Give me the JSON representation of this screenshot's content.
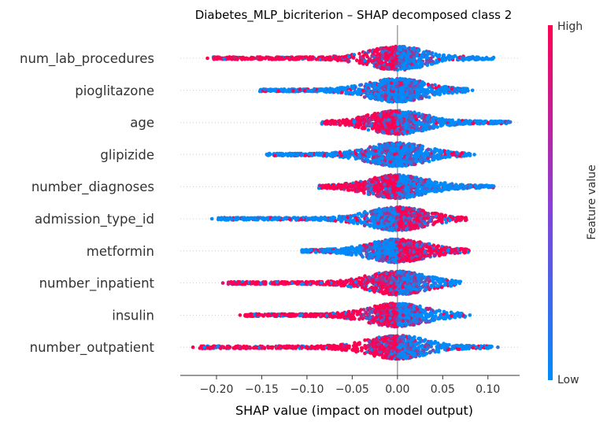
{
  "chart_data": {
    "type": "scatter",
    "subtype": "shap-beeswarm",
    "title": "Diabetes_MLP_bicriterion – SHAP decomposed class 2",
    "xlabel": "SHAP value (impact on model output)",
    "xlim": [
      -0.24,
      0.135
    ],
    "x_ticks": [
      -0.2,
      -0.15,
      -0.1,
      -0.05,
      0.0,
      0.05,
      0.1
    ],
    "x_tick_labels": [
      "−0.20",
      "−0.15",
      "−0.10",
      "−0.05",
      "0.00",
      "0.05",
      "0.10"
    ],
    "colorbar": {
      "label": "Feature value",
      "high_label": "High",
      "low_label": "Low",
      "high_color": "#ff0051",
      "low_color": "#008bfb"
    },
    "features": [
      {
        "name": "num_lab_procedures",
        "min": -0.21,
        "max": 0.113,
        "core": [
          -0.11,
          0.065
        ],
        "left_color": "high",
        "right_color": "low",
        "outliers": [
          -0.21
        ]
      },
      {
        "name": "pioglitazone",
        "min": -0.157,
        "max": 0.083,
        "core": [
          -0.06,
          0.05
        ],
        "left_color": "low",
        "right_color": "low",
        "outliers": [
          0.083,
          0.075
        ]
      },
      {
        "name": "age",
        "min": -0.088,
        "max": 0.131,
        "core": [
          -0.06,
          0.09
        ],
        "left_color": "high",
        "right_color": "low",
        "outliers": []
      },
      {
        "name": "glipizide",
        "min": -0.15,
        "max": 0.085,
        "core": [
          -0.08,
          0.06
        ],
        "left_color": "low",
        "right_color": "low",
        "outliers": [
          0.085
        ]
      },
      {
        "name": "number_diagnoses",
        "min": -0.091,
        "max": 0.111,
        "core": [
          -0.07,
          0.09
        ],
        "left_color": "high",
        "right_color": "low",
        "outliers": []
      },
      {
        "name": "admission_type_id",
        "min": -0.205,
        "max": 0.082,
        "core": [
          -0.13,
          0.07
        ],
        "left_color": "low",
        "right_color": "high",
        "outliers": [
          -0.205
        ]
      },
      {
        "name": "metformin",
        "min": -0.11,
        "max": 0.083,
        "core": [
          -0.07,
          0.08
        ],
        "left_color": "low",
        "right_color": "high",
        "outliers": []
      },
      {
        "name": "number_inpatient",
        "min": -0.193,
        "max": 0.075,
        "core": [
          -0.16,
          0.06
        ],
        "left_color": "high",
        "right_color": "low",
        "outliers": [
          -0.193
        ]
      },
      {
        "name": "insulin",
        "min": -0.174,
        "max": 0.08,
        "core": [
          -0.14,
          0.07
        ],
        "left_color": "high",
        "right_color": "low",
        "outliers": [
          -0.174,
          -0.155,
          0.08
        ]
      },
      {
        "name": "number_outpatient",
        "min": -0.226,
        "max": 0.111,
        "core": [
          -0.12,
          0.085
        ],
        "left_color": "high",
        "right_color": "low",
        "outliers": [
          -0.226,
          -0.195,
          -0.186,
          -0.15,
          -0.14,
          -0.12,
          0.111
        ]
      }
    ]
  }
}
